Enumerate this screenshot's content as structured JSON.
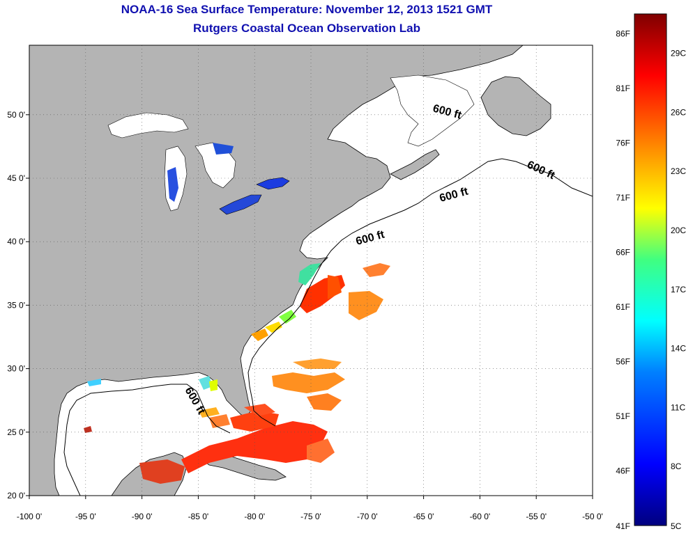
{
  "title": "NOAA-16 Sea Surface Temperature:  November 12, 2013 1521 GMT",
  "subtitle": "Rutgers Coastal Ocean Observation Lab",
  "axes": {
    "lon_ticks": [
      "-100 0'",
      "-95 0'",
      "-90 0'",
      "-85 0'",
      "-80 0'",
      "-75 0'",
      "-70 0'",
      "-65 0'",
      "-60 0'",
      "-55 0'",
      "-50 0'"
    ],
    "lat_ticks": [
      "20 0'",
      "25 0'",
      "30 0'",
      "35 0'",
      "40 0'",
      "45 0'",
      "50 0'"
    ],
    "lon_range": [
      -100,
      -50
    ],
    "lat_range": [
      20,
      52
    ]
  },
  "contour": {
    "label": "600 ft"
  },
  "colorbar": {
    "fahrenheit_labels": [
      "86F",
      "81F",
      "76F",
      "71F",
      "66F",
      "61F",
      "56F",
      "51F",
      "46F",
      "41F"
    ],
    "celsius_labels": [
      "29C",
      "26C",
      "23C",
      "20C",
      "17C",
      "14C",
      "11C",
      "8C",
      "5C"
    ],
    "range_c": [
      5,
      31
    ]
  },
  "colors": {
    "land": "#b4b4b4",
    "ocean": "#ffffff",
    "title": "#1010b0"
  }
}
